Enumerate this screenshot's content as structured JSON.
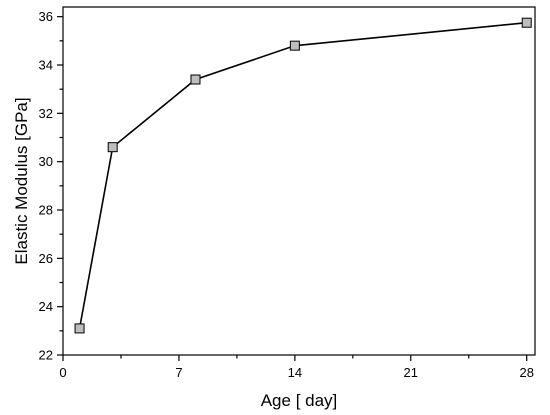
{
  "chart_data": {
    "type": "line",
    "xlabel": "Age [ day]",
    "ylabel": "Elastic Modulus [GPa]",
    "xlim": [
      0,
      28.5
    ],
    "ylim": [
      22,
      36.4
    ],
    "x_ticks": [
      0,
      7,
      14,
      21,
      28
    ],
    "y_ticks": [
      22,
      24,
      26,
      28,
      30,
      32,
      34,
      36
    ],
    "grid": false,
    "series": [
      {
        "x": [
          1,
          3,
          8,
          14,
          28
        ],
        "values": [
          23.1,
          30.6,
          33.4,
          34.8,
          35.75
        ],
        "marker": "square",
        "marker_color": "#bdbdbd",
        "line_color": "#000000"
      }
    ]
  }
}
